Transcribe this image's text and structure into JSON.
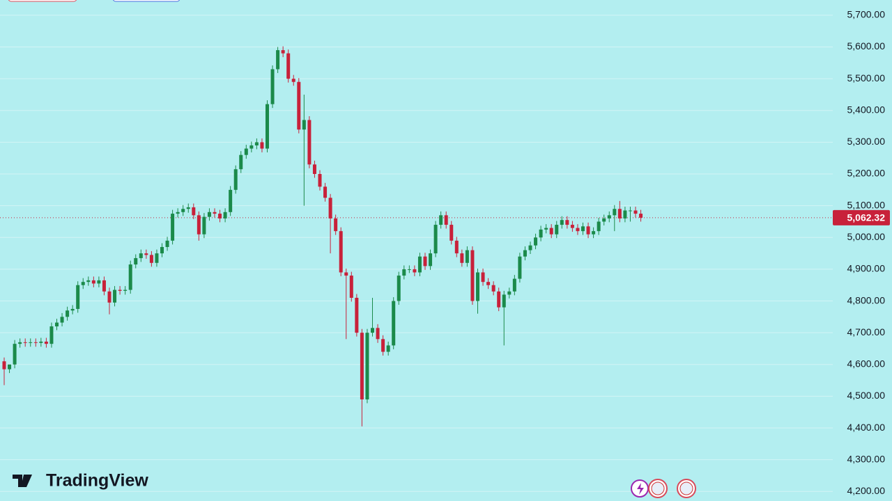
{
  "chart_data": {
    "type": "candlestick",
    "brand": "TradingView",
    "ylim": [
      4170,
      5748
    ],
    "yticks": [
      {
        "value": 4200,
        "label": "4,200.00"
      },
      {
        "value": 4300,
        "label": "4,300.00"
      },
      {
        "value": 4400,
        "label": "4,400.00"
      },
      {
        "value": 4500,
        "label": "4,500.00"
      },
      {
        "value": 4600,
        "label": "4,600.00"
      },
      {
        "value": 4700,
        "label": "4,700.00"
      },
      {
        "value": 4800,
        "label": "4,800.00"
      },
      {
        "value": 4900,
        "label": "4,900.00"
      },
      {
        "value": 5000,
        "label": "5,000.00"
      },
      {
        "value": 5100,
        "label": "5,100.00"
      },
      {
        "value": 5200,
        "label": "5,200.00"
      },
      {
        "value": 5300,
        "label": "5,300.00"
      },
      {
        "value": 5400,
        "label": "5,400.00"
      },
      {
        "value": 5500,
        "label": "5,500.00"
      },
      {
        "value": 5600,
        "label": "5,600.00"
      },
      {
        "value": 5700,
        "label": "5,700.00"
      }
    ],
    "grid": true,
    "up_color": "#1b8a4a",
    "down_color": "#c8213a",
    "last_price": {
      "value": 5062.32,
      "label": "5,062.32"
    },
    "open": [
      4610,
      4585,
      4600,
      4665,
      4670,
      4668,
      4670,
      4668,
      4672,
      4665,
      4720,
      4732,
      4750,
      4770,
      4775,
      4850,
      4860,
      4865,
      4855,
      4865,
      4830,
      4795,
      4835,
      4832,
      4835,
      4915,
      4935,
      4950,
      4945,
      4920,
      4950,
      4970,
      4990,
      5075,
      5080,
      5090,
      5095,
      5070,
      5010,
      5065,
      5080,
      5075,
      5060,
      5080,
      5150,
      5215,
      5260,
      5280,
      5290,
      5300,
      5280,
      5420,
      5530,
      5590,
      5580,
      5500,
      5490,
      5340,
      5370,
      5230,
      5200,
      5160,
      5125,
      5060,
      5020,
      4890,
      4880,
      4810,
      4700,
      4490,
      4700,
      4715,
      4680,
      4640,
      4660,
      4800,
      4880,
      4900,
      4900,
      4890,
      4940,
      4910,
      4950,
      5040,
      5070,
      5040,
      4990,
      4950,
      4920,
      4960,
      4800,
      4890,
      4860,
      4850,
      4830,
      4780,
      4820,
      4830,
      4870,
      4940,
      4960,
      4975,
      5000,
      5025,
      5030,
      5010,
      5040,
      5055,
      5040,
      5030,
      5020,
      5035,
      5010,
      5020,
      5050,
      5060,
      5070,
      5090,
      5060,
      5085,
      5085,
      5075
    ],
    "high": [
      4622,
      4597,
      4677,
      4682,
      4682,
      4682,
      4682,
      4684,
      4684,
      4732,
      4744,
      4762,
      4782,
      4787,
      4862,
      4872,
      4877,
      4877,
      4877,
      4877,
      4842,
      4847,
      4847,
      4847,
      4927,
      4947,
      4962,
      4962,
      4957,
      4962,
      4982,
      5002,
      5087,
      5092,
      5102,
      5107,
      5107,
      5082,
      5077,
      5092,
      5092,
      5087,
      5092,
      5162,
      5227,
      5272,
      5292,
      5302,
      5312,
      5312,
      5432,
      5542,
      5600,
      5602,
      5592,
      5512,
      5502,
      5450,
      5382,
      5242,
      5212,
      5172,
      5137,
      5072,
      5032,
      4902,
      4892,
      4822,
      4712,
      4712,
      4810,
      4727,
      4692,
      4672,
      4812,
      4892,
      4912,
      4912,
      4912,
      4952,
      4952,
      4962,
      5052,
      5082,
      5082,
      5052,
      5002,
      4962,
      4972,
      4972,
      4902,
      4902,
      4872,
      4862,
      4842,
      4832,
      4842,
      4882,
      4952,
      4972,
      4987,
      5012,
      5037,
      5042,
      5042,
      5052,
      5067,
      5067,
      5052,
      5042,
      5047,
      5047,
      5032,
      5062,
      5072,
      5082,
      5102,
      5115,
      5097,
      5097,
      5097,
      5087
    ],
    "low": [
      4535,
      4573,
      4588,
      4653,
      4656,
      4656,
      4656,
      4656,
      4653,
      4653,
      4708,
      4720,
      4738,
      4758,
      4763,
      4838,
      4848,
      4843,
      4843,
      4818,
      4758,
      4783,
      4820,
      4820,
      4823,
      4903,
      4923,
      4933,
      4908,
      4908,
      4938,
      4958,
      4978,
      5063,
      5068,
      5078,
      5058,
      4990,
      4998,
      5053,
      5063,
      5048,
      5048,
      5068,
      5138,
      5203,
      5248,
      5268,
      5278,
      5268,
      5268,
      5408,
      5518,
      5568,
      5488,
      5478,
      5328,
      5100,
      5218,
      5188,
      5148,
      5113,
      4950,
      5008,
      4878,
      4680,
      4798,
      4688,
      4405,
      4478,
      4688,
      4668,
      4628,
      4628,
      4648,
      4788,
      4868,
      4888,
      4878,
      4878,
      4898,
      4898,
      4938,
      5028,
      5028,
      4978,
      4938,
      4908,
      4908,
      4788,
      4760,
      4848,
      4838,
      4818,
      4768,
      4660,
      4808,
      4818,
      4858,
      4928,
      4948,
      4963,
      4988,
      5013,
      4998,
      4998,
      5028,
      5028,
      5018,
      5008,
      5008,
      4998,
      4998,
      5008,
      5038,
      5048,
      5020,
      5048,
      5048,
      5050,
      5063,
      5050
    ],
    "close": [
      4585,
      4600,
      4665,
      4670,
      4668,
      4670,
      4668,
      4672,
      4665,
      4720,
      4732,
      4750,
      4770,
      4775,
      4850,
      4860,
      4865,
      4855,
      4865,
      4830,
      4795,
      4835,
      4832,
      4835,
      4915,
      4935,
      4950,
      4945,
      4920,
      4950,
      4970,
      4990,
      5075,
      5080,
      5090,
      5095,
      5070,
      5010,
      5065,
      5080,
      5075,
      5060,
      5080,
      5150,
      5215,
      5260,
      5280,
      5290,
      5300,
      5280,
      5420,
      5530,
      5590,
      5580,
      5500,
      5490,
      5340,
      5370,
      5230,
      5200,
      5160,
      5125,
      5060,
      5020,
      4890,
      4880,
      4810,
      4700,
      4490,
      4700,
      4715,
      4680,
      4640,
      4660,
      4800,
      4880,
      4900,
      4900,
      4890,
      4940,
      4910,
      4950,
      5040,
      5070,
      5040,
      4990,
      4950,
      4920,
      4960,
      4800,
      4890,
      4860,
      4850,
      4830,
      4780,
      4820,
      4830,
      4870,
      4940,
      4960,
      4975,
      5000,
      5025,
      5030,
      5010,
      5040,
      5055,
      5040,
      5030,
      5020,
      5035,
      5010,
      5020,
      5050,
      5060,
      5070,
      5090,
      5060,
      5085,
      5085,
      5075,
      5062.32
    ]
  }
}
